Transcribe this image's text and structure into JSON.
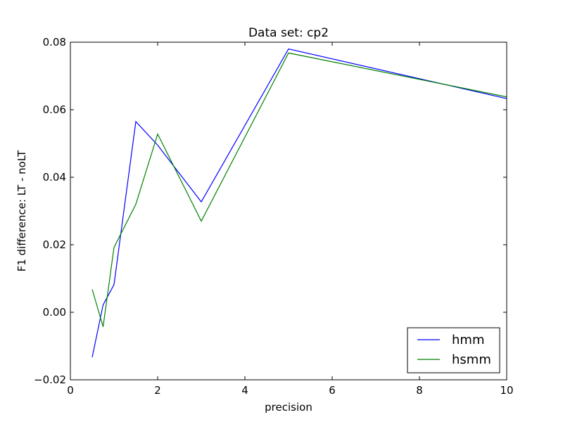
{
  "chart_data": {
    "type": "line",
    "title": "Data set: cp2",
    "xlabel": "precision",
    "ylabel": "F1 difference: LT - noLT",
    "xlim": [
      0,
      10
    ],
    "ylim": [
      -0.02,
      0.08
    ],
    "xticks": [
      0,
      2,
      4,
      6,
      8,
      10
    ],
    "xtick_labels": [
      "0",
      "2",
      "4",
      "6",
      "8",
      "10"
    ],
    "yticks": [
      -0.02,
      0.0,
      0.02,
      0.04,
      0.06,
      0.08
    ],
    "ytick_labels": [
      "−0.02",
      "0.00",
      "0.02",
      "0.04",
      "0.06",
      "0.08"
    ],
    "grid": false,
    "legend_position": "lower-right",
    "series": [
      {
        "name": "hmm",
        "color": "#0000ff",
        "x": [
          0.5,
          0.75,
          1.0,
          1.5,
          2.0,
          3.0,
          5.0,
          10.0
        ],
        "y": [
          -0.0133,
          0.0022,
          0.0082,
          0.0565,
          0.0495,
          0.0327,
          0.078,
          0.0633
        ]
      },
      {
        "name": "hsmm",
        "color": "#008000",
        "x": [
          0.5,
          0.75,
          1.0,
          1.5,
          2.0,
          3.0,
          5.0,
          10.0
        ],
        "y": [
          0.0068,
          -0.0043,
          0.0192,
          0.032,
          0.0528,
          0.027,
          0.0768,
          0.0638
        ]
      }
    ]
  }
}
